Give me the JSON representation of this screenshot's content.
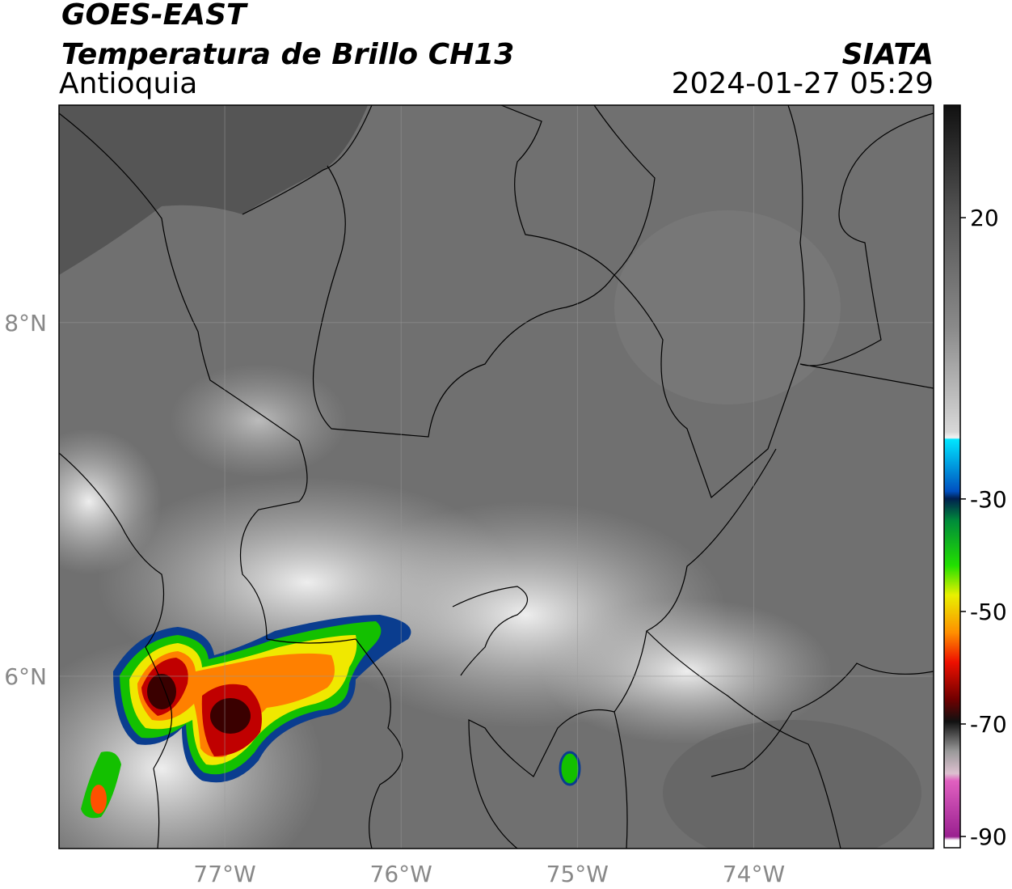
{
  "header": {
    "title": "GOES-EAST",
    "subtitle": "Temperatura de Brillo CH13",
    "region": "Antioquia",
    "source": "SIATA",
    "datetime": "2024-01-27 05:29"
  },
  "map": {
    "xlim": [
      -77.94,
      -72.98
    ],
    "ylim": [
      5.025,
      9.23
    ],
    "xticks": [
      {
        "value": -77,
        "label": "77°W"
      },
      {
        "value": -76,
        "label": "76°W"
      },
      {
        "value": -75,
        "label": "75°W"
      },
      {
        "value": -74,
        "label": "74°W"
      }
    ],
    "yticks": [
      {
        "value": 8,
        "label": "8°N"
      },
      {
        "value": 6,
        "label": "6°N"
      }
    ],
    "grid": true
  },
  "colorbar": {
    "lim": [
      -92,
      40
    ],
    "ticks": [
      20,
      -30,
      -50,
      -70,
      -90
    ]
  }
}
